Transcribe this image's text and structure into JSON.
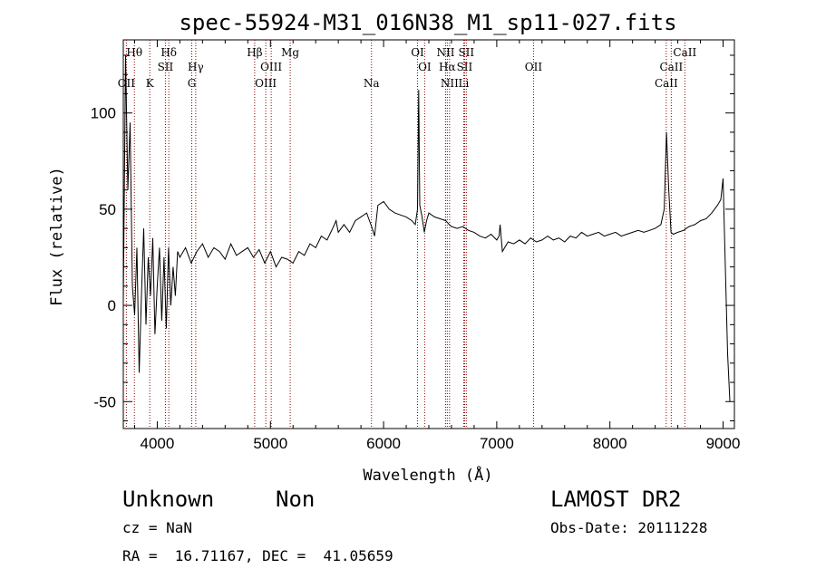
{
  "chart_data": {
    "type": "line",
    "title": "spec-55924-M31_016N38_M1_sp11-027.fits",
    "xlabel": "Wavelength (Å)",
    "ylabel": "Flux (relative)",
    "xlim": [
      3700,
      9100
    ],
    "ylim": [
      -64,
      138
    ],
    "xticks": [
      4000,
      5000,
      6000,
      7000,
      8000,
      9000
    ],
    "yticks": [
      -50,
      0,
      50,
      100
    ],
    "series": [
      {
        "x": [
          3700,
          3720,
          3740,
          3760,
          3780,
          3800,
          3820,
          3840,
          3860,
          3880,
          3900,
          3920,
          3940,
          3960,
          3980,
          4000,
          4020,
          4040,
          4060,
          4080,
          4100,
          4120,
          4140,
          4160,
          4180,
          4200,
          4250,
          4300,
          4350,
          4400,
          4450,
          4500,
          4550,
          4600,
          4650,
          4700,
          4750,
          4800,
          4850,
          4900,
          4950,
          5000,
          5050,
          5100,
          5150,
          5200,
          5250,
          5300,
          5350,
          5400,
          5450,
          5500,
          5550,
          5580,
          5600,
          5650,
          5700,
          5750,
          5800,
          5850,
          5900,
          5920,
          5950,
          6000,
          6050,
          6100,
          6150,
          6200,
          6250,
          6280,
          6300,
          6310,
          6320,
          6340,
          6360,
          6380,
          6400,
          6450,
          6500,
          6550,
          6580,
          6600,
          6650,
          6700,
          6750,
          6800,
          6850,
          6900,
          6950,
          7000,
          7020,
          7030,
          7050,
          7100,
          7150,
          7200,
          7250,
          7300,
          7350,
          7400,
          7450,
          7500,
          7550,
          7600,
          7650,
          7700,
          7750,
          7800,
          7850,
          7900,
          7950,
          8000,
          8050,
          8100,
          8150,
          8200,
          8250,
          8300,
          8350,
          8400,
          8450,
          8480,
          8500,
          8520,
          8540,
          8560,
          8600,
          8650,
          8700,
          8750,
          8800,
          8850,
          8900,
          8950,
          8980,
          9000,
          9020,
          9040,
          9060
        ],
        "y": [
          2,
          130,
          60,
          95,
          10,
          -5,
          30,
          -35,
          5,
          40,
          -10,
          25,
          5,
          35,
          -15,
          10,
          30,
          -8,
          25,
          -12,
          30,
          0,
          20,
          5,
          28,
          25,
          30,
          22,
          28,
          32,
          25,
          30,
          28,
          24,
          32,
          26,
          28,
          30,
          25,
          29,
          22,
          28,
          20,
          25,
          24,
          22,
          28,
          26,
          32,
          30,
          36,
          34,
          40,
          44,
          38,
          42,
          38,
          44,
          46,
          48,
          40,
          36,
          52,
          54,
          50,
          48,
          47,
          46,
          44,
          42,
          50,
          112,
          52,
          46,
          38,
          44,
          48,
          46,
          45,
          44,
          42,
          41,
          40,
          41,
          39,
          38,
          36,
          35,
          37,
          34,
          36,
          42,
          28,
          33,
          32,
          34,
          32,
          35,
          33,
          34,
          36,
          34,
          35,
          33,
          36,
          35,
          38,
          36,
          37,
          38,
          36,
          37,
          38,
          36,
          37,
          38,
          39,
          38,
          39,
          40,
          42,
          50,
          90,
          60,
          38,
          37,
          38,
          39,
          41,
          42,
          44,
          45,
          48,
          52,
          55,
          66,
          20,
          -25,
          -50
        ]
      }
    ],
    "lines": [
      {
        "label": "Hθ",
        "x": 3798,
        "row": 0
      },
      {
        "label": "Hδ",
        "x": 4102,
        "row": 0
      },
      {
        "label": "Hβ",
        "x": 4861,
        "row": 0
      },
      {
        "label": "Mg",
        "x": 5175,
        "row": 0
      },
      {
        "label": "OI",
        "x": 6300,
        "row": 0
      },
      {
        "label": "NII",
        "x": 6548,
        "row": 0
      },
      {
        "label": "SII",
        "x": 6731,
        "row": 0
      },
      {
        "label": "CaII",
        "x": 8662,
        "row": 0
      },
      {
        "label": "SII",
        "x": 4072,
        "row": 1
      },
      {
        "label": "Hγ",
        "x": 4340,
        "row": 1
      },
      {
        "label": "OIII",
        "x": 5007,
        "row": 1
      },
      {
        "label": "OI",
        "x": 6363,
        "row": 1
      },
      {
        "label": "Hα",
        "x": 6563,
        "row": 1
      },
      {
        "label": "SII",
        "x": 6716,
        "row": 1
      },
      {
        "label": "OII",
        "x": 7325,
        "row": 1
      },
      {
        "label": "CaII",
        "x": 8542,
        "row": 1
      },
      {
        "label": "OII",
        "x": 3727,
        "row": 2
      },
      {
        "label": "K",
        "x": 3934,
        "row": 2
      },
      {
        "label": "G",
        "x": 4305,
        "row": 2
      },
      {
        "label": "OIII",
        "x": 4959,
        "row": 2
      },
      {
        "label": "Na",
        "x": 5893,
        "row": 2
      },
      {
        "label": "NII",
        "x": 6583,
        "row": 2
      },
      {
        "label": "Li",
        "x": 6708,
        "row": 2
      },
      {
        "label": "CaII",
        "x": 8498,
        "row": 2
      }
    ],
    "line_color": "#8b0000",
    "grid": false
  },
  "info": {
    "class": "Unknown",
    "subclass": "Non",
    "survey": "LAMOST DR2",
    "cz": "cz = NaN",
    "obs_date": "Obs-Date: 20111228",
    "coords": "RA =  16.71167, DEC =  41.05659"
  }
}
